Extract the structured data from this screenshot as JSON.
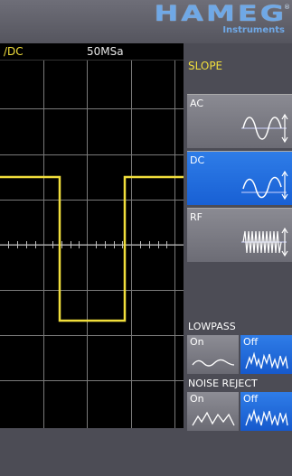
{
  "brand": {
    "name": "HAMEG",
    "registered": "®",
    "subtitle": "Instruments"
  },
  "scope": {
    "coupling_label": "/DC",
    "sample_rate": "50MSa",
    "trace_color": "#f1de3c"
  },
  "panel": {
    "title": "SLOPE",
    "slope_options": [
      {
        "label": "AC",
        "icon": "sine-wave-ac-icon",
        "selected": false
      },
      {
        "label": "DC",
        "icon": "sine-wave-dc-icon",
        "selected": true
      },
      {
        "label": "RF",
        "icon": "high-frequency-wave-icon",
        "selected": false
      }
    ],
    "lowpass": {
      "title": "LOWPASS",
      "on_label": "On",
      "off_label": "Off",
      "selected": "Off"
    },
    "noise_reject": {
      "title": "NOISE REJECT",
      "on_label": "On",
      "off_label": "Off",
      "selected": "Off"
    }
  },
  "colors": {
    "accent_blue": "#1f6fe0",
    "trace_yellow": "#f1de3c",
    "brand_blue": "#6fa8e6"
  }
}
